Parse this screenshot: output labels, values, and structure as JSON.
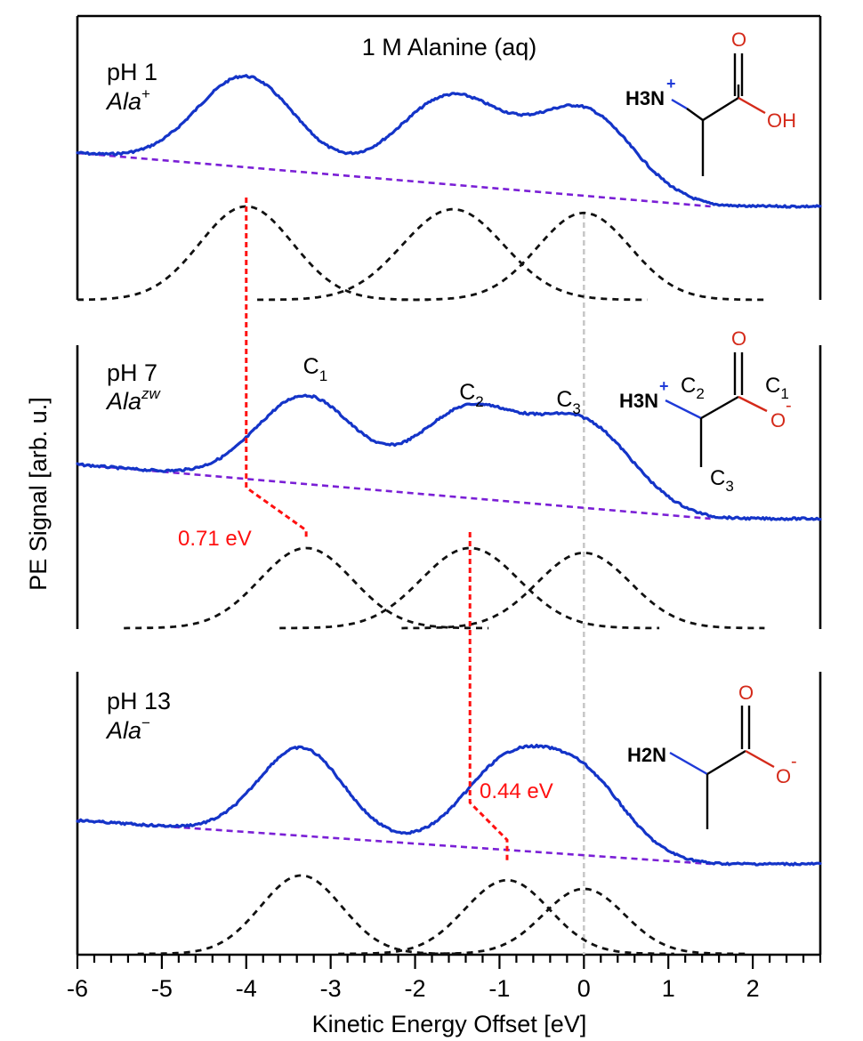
{
  "chart_data": {
    "type": "line",
    "title": "1 M Alanine (aq)",
    "xlabel": "Kinetic Energy Offset [eV]",
    "ylabel": "PE Signal [arb. u.]",
    "xlim": [
      -6,
      2.8
    ],
    "xticks": [
      "-6",
      "-5",
      "-4",
      "-3",
      "-2",
      "-1",
      "0",
      "1",
      "2"
    ],
    "reference_energy": 0,
    "panels": [
      {
        "id": "ph1",
        "ph_label": "pH 1",
        "species_base": "Ala",
        "species_sup": "+",
        "peaks": [
          {
            "center": -4.0,
            "sigma": 0.55,
            "amplitude": 1.0
          },
          {
            "center": -1.55,
            "sigma": 0.6,
            "amplitude": 0.97
          },
          {
            "center": 0.0,
            "sigma": 0.55,
            "amplitude": 0.93
          }
        ],
        "background": {
          "start": 1.0,
          "end": 0.6
        },
        "carbon_labels": [],
        "shift_label": ""
      },
      {
        "id": "ph7",
        "ph_label": "pH 7",
        "species_base": "Ala",
        "species_sup": "zw",
        "peaks": [
          {
            "center": -3.29,
            "sigma": 0.55,
            "amplitude": 1.0
          },
          {
            "center": -1.35,
            "sigma": 0.58,
            "amplitude": 1.0
          },
          {
            "center": 0.0,
            "sigma": 0.55,
            "amplitude": 0.94
          }
        ],
        "background": {
          "start": 1.0,
          "end": 0.6
        },
        "carbon_labels": [
          {
            "text": "C",
            "sub": "1",
            "energy": -3.2
          },
          {
            "text": "C",
            "sub": "2",
            "energy": -1.35
          },
          {
            "text": "C",
            "sub": "3",
            "energy": -0.2
          }
        ],
        "shift_label": "0.71 eV",
        "shift_value": 0.71
      },
      {
        "id": "ph13",
        "ph_label": "pH 13",
        "species_base": "Ala",
        "species_sup": "−",
        "peaks": [
          {
            "center": -3.35,
            "sigma": 0.48,
            "amplitude": 1.0
          },
          {
            "center": -0.91,
            "sigma": 0.5,
            "amplitude": 0.94
          },
          {
            "center": 0.0,
            "sigma": 0.48,
            "amplitude": 0.83
          }
        ],
        "background": {
          "start": 1.0,
          "end": 0.6
        },
        "carbon_labels": [],
        "shift_label": "0.44 eV",
        "shift_value": 0.44
      }
    ]
  },
  "molecules": {
    "ph1": {
      "amine": "H3N",
      "amine_charge": "+",
      "oxygen_top": "O",
      "oxygen_side": "OH",
      "oxygen_charge": ""
    },
    "ph7": {
      "amine": "H3N",
      "amine_charge": "+",
      "oxygen_top": "O",
      "oxygen_side": "O",
      "oxygen_charge": "-",
      "carbon_labels": [
        "C2",
        "C1",
        "C3"
      ]
    },
    "ph13": {
      "amine": "H2N",
      "amine_charge": "",
      "oxygen_top": "O",
      "oxygen_side": "O",
      "oxygen_charge": "-"
    }
  },
  "colors": {
    "spectrum": "#1434c8",
    "background_line": "#7a1fd6",
    "fit_peaks": "#111111",
    "shift_marker": "#ff1010",
    "reference_line": "#c8c8c8",
    "nitrogen": "#1f3ad8",
    "oxygen": "#d42a1a"
  }
}
